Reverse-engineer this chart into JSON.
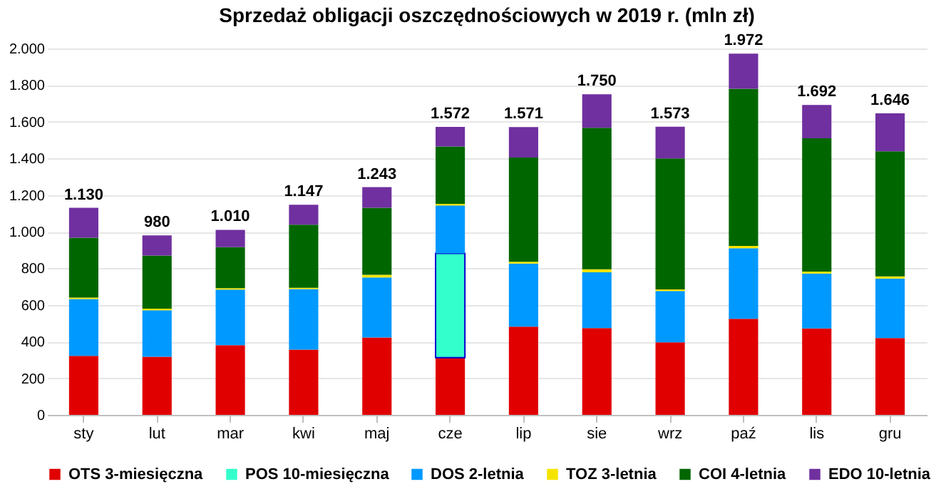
{
  "chart_data": {
    "type": "bar",
    "stacked": true,
    "title": "Sprzedaż obligacji oszczędnościowych w 2019 r. (mln zł)",
    "categories": [
      "sty",
      "lut",
      "mar",
      "kwi",
      "maj",
      "cze",
      "lip",
      "sie",
      "wrz",
      "paź",
      "lis",
      "gru"
    ],
    "series": [
      {
        "name": "OTS 3-miesięczna",
        "color": "#e00000",
        "values": [
          322,
          317,
          380,
          356,
          422,
          312,
          482,
          474,
          396,
          524,
          472,
          419
        ]
      },
      {
        "name": "POS 10-miesięczna",
        "color": "#33ffcc",
        "values": [
          null,
          null,
          null,
          null,
          null,
          569,
          null,
          null,
          null,
          null,
          null,
          null
        ]
      },
      {
        "name": "DOS 2-letnia",
        "color": "#0099ff",
        "values": [
          310,
          254,
          304,
          331,
          328,
          262,
          344,
          304,
          280,
          386,
          299,
          325
        ]
      },
      {
        "name": "TOZ 3-letnia",
        "color": "#f5e400",
        "values": [
          8,
          9,
          8,
          7,
          15,
          9,
          10,
          17,
          9,
          12,
          11,
          12
        ]
      },
      {
        "name": "COI 4-letnia",
        "color": "#006600",
        "values": [
          327,
          290,
          223,
          344,
          365,
          313,
          569,
          772,
          715,
          858,
          728,
          683
        ]
      },
      {
        "name": "EDO 10-letnia",
        "color": "#7030a0",
        "values": [
          163,
          110,
          95,
          109,
          113,
          107,
          166,
          183,
          173,
          192,
          182,
          207
        ]
      }
    ],
    "totals": [
      "1.130",
      "980",
      "1.010",
      "1.147",
      "1.243",
      "1.572",
      "1.571",
      "1.750",
      "1.573",
      "1.972",
      "1.692",
      "1.646"
    ],
    "ylim": [
      0,
      2000
    ],
    "yticks": [
      0,
      200,
      400,
      600,
      800,
      {
        "value": 1000,
        "label": "1.000"
      },
      {
        "value": 1200,
        "label": "1.200"
      },
      {
        "value": 1400,
        "label": "1.400"
      },
      {
        "value": 1600,
        "label": "1.600"
      },
      {
        "value": 1800,
        "label": "1.800"
      },
      {
        "value": 2000,
        "label": "2.000"
      }
    ],
    "grid": "y",
    "legend": "bottom"
  }
}
